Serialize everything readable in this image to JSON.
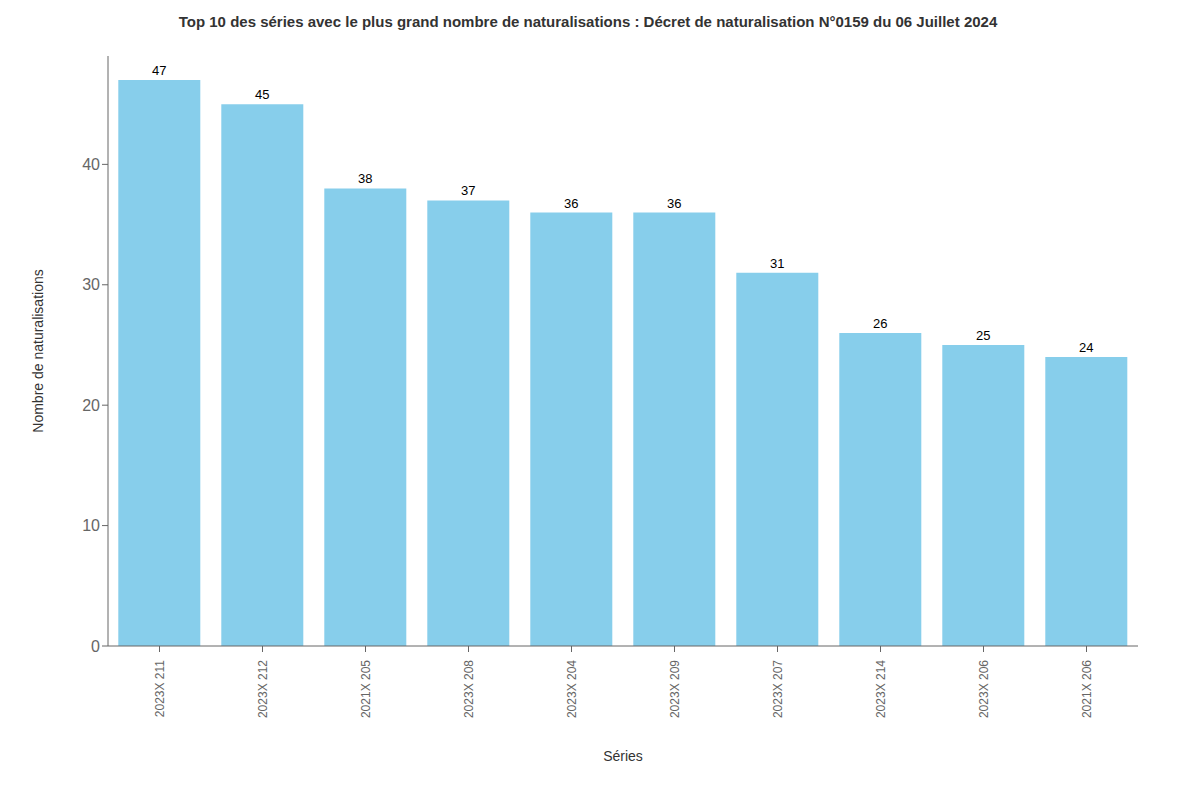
{
  "chart_data": {
    "type": "bar",
    "title": "Top 10 des séries avec le plus grand nombre de naturalisations : Décret de naturalisation N°0159 du 06 Juillet 2024",
    "xlabel": "Séries",
    "ylabel": "Nombre de naturalisations",
    "categories": [
      "2023X 211",
      "2023X 212",
      "2021X 205",
      "2023X 208",
      "2023X 204",
      "2023X 209",
      "2023X 207",
      "2023X 214",
      "2023X 206",
      "2021X 206"
    ],
    "values": [
      47,
      45,
      38,
      37,
      36,
      36,
      31,
      26,
      25,
      24
    ],
    "color": "#87CEEB",
    "ylim": [
      0,
      49
    ],
    "yticks": [
      0,
      10,
      20,
      30,
      40
    ],
    "grid": false,
    "data_labels": true
  }
}
